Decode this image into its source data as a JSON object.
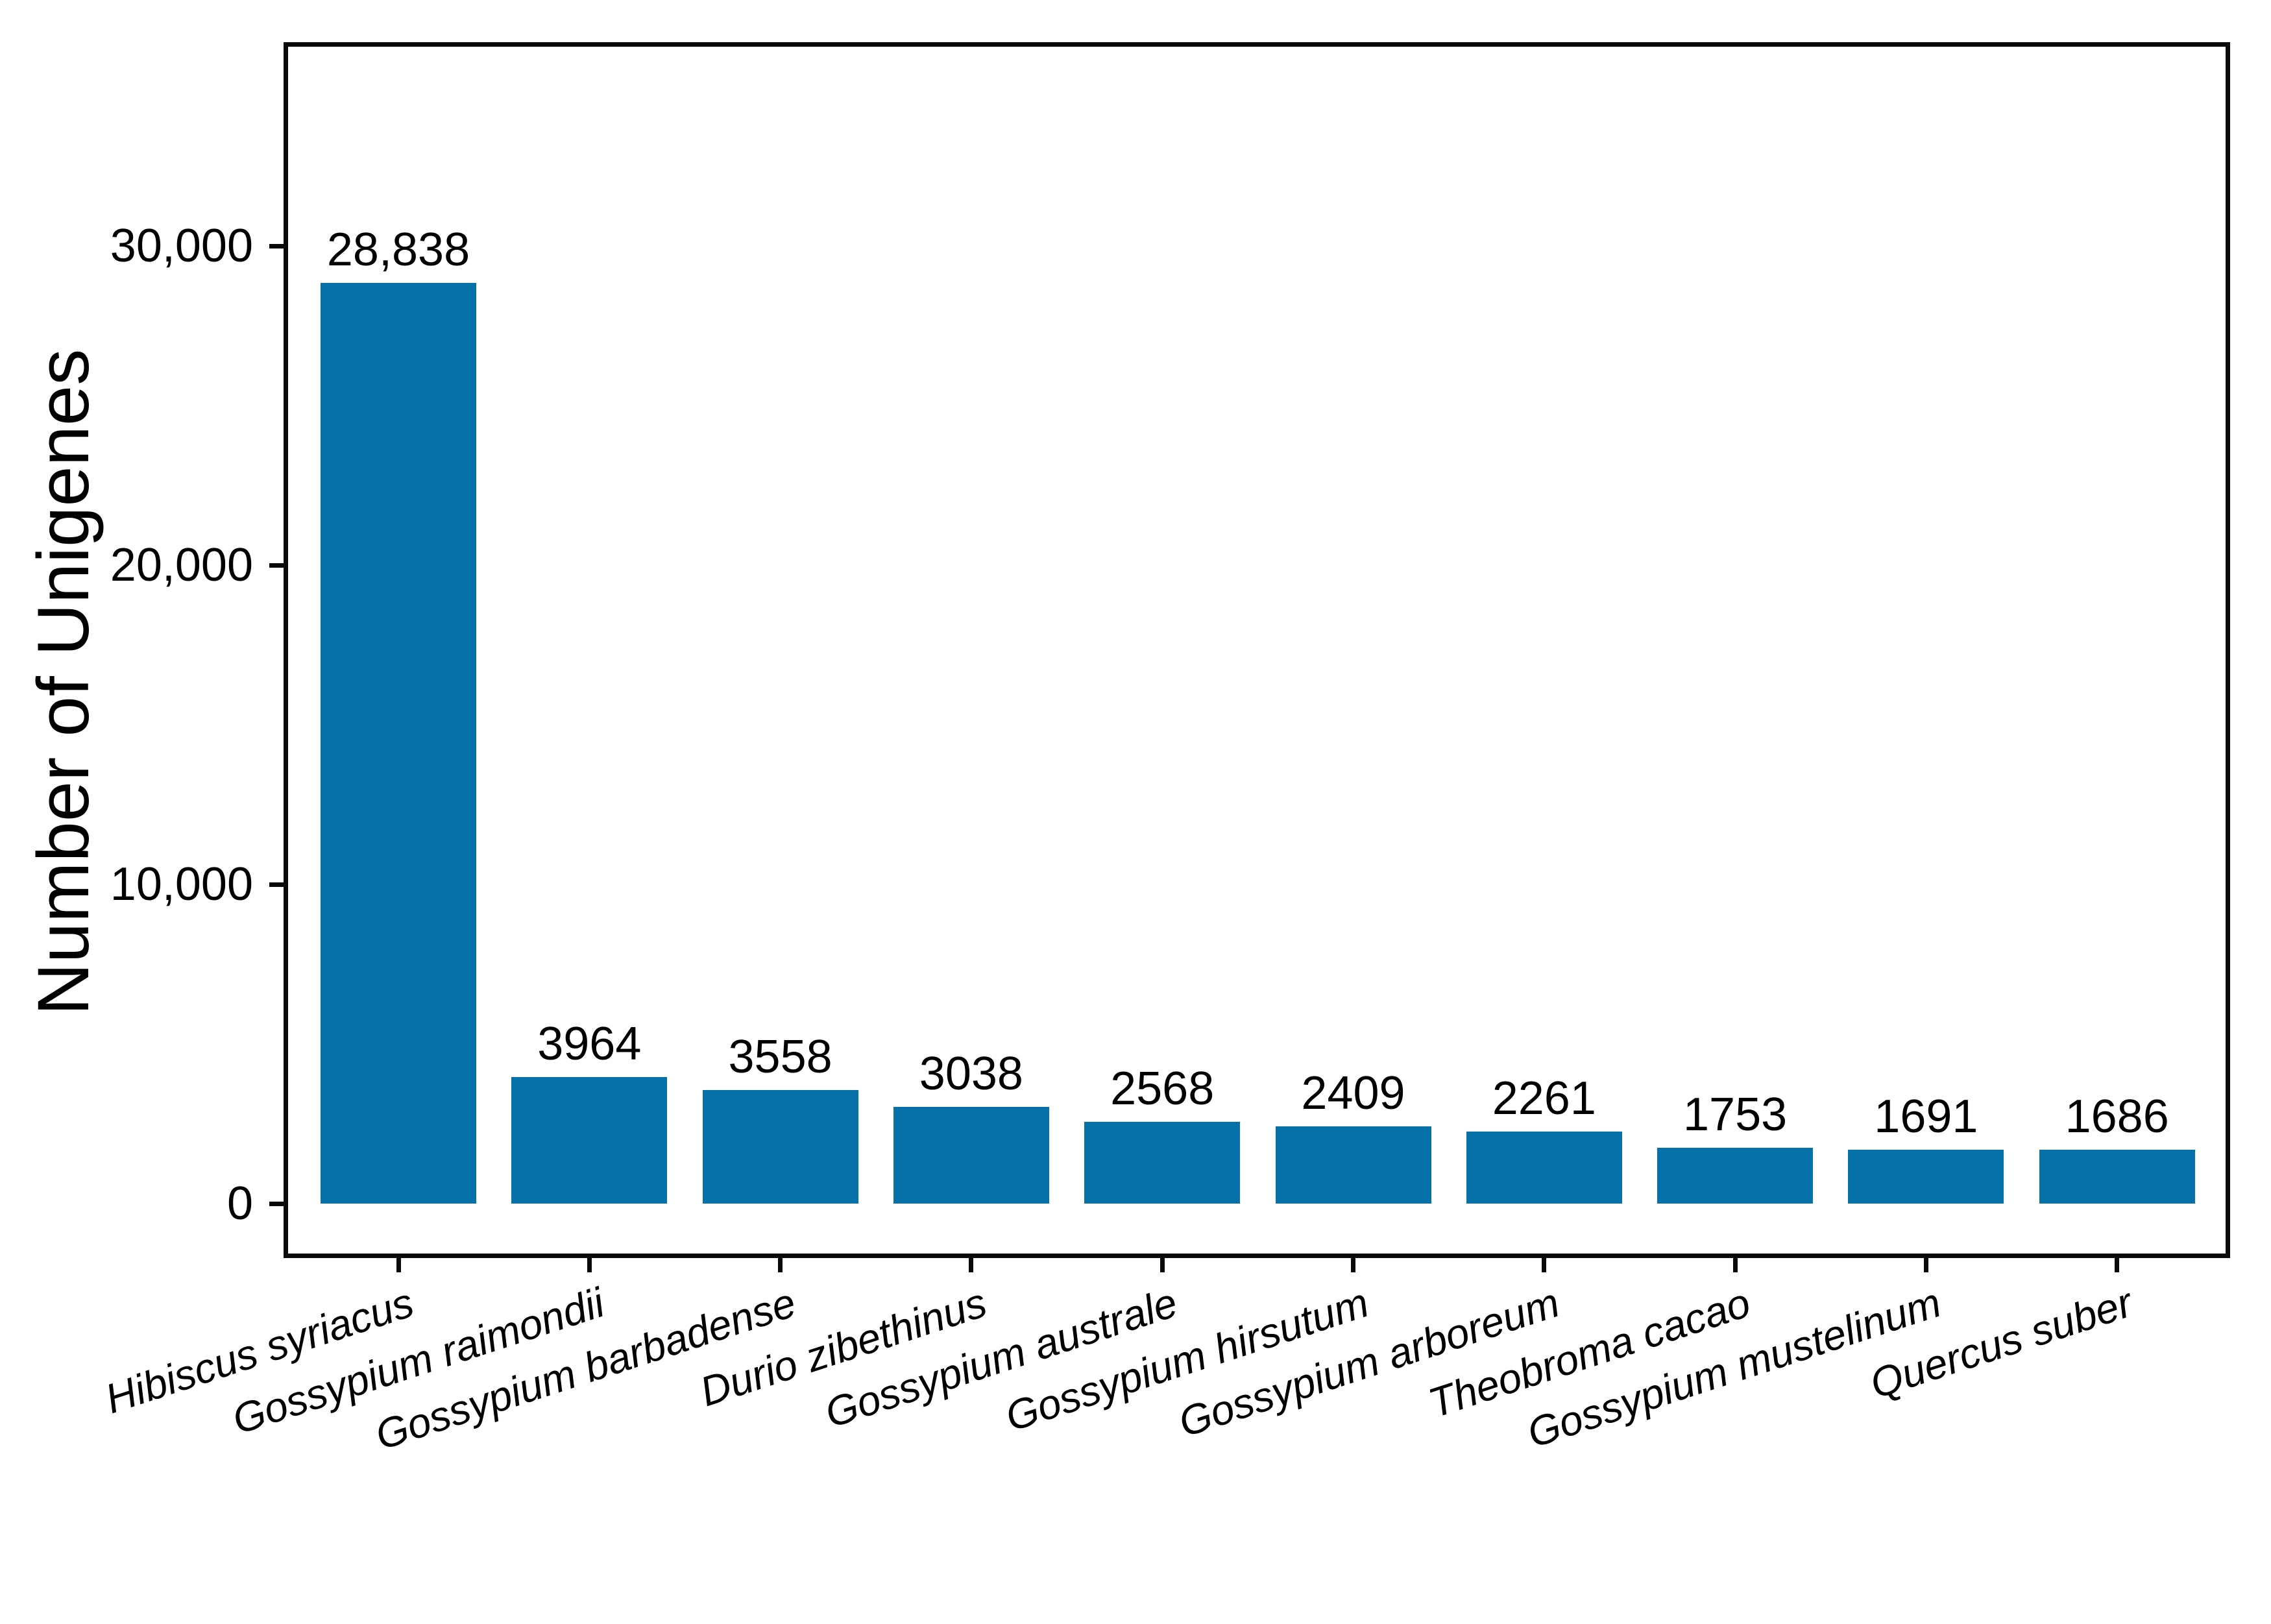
{
  "figure": {
    "background": "#ffffff"
  },
  "chart_data": {
    "type": "bar",
    "title": "",
    "xlabel": "",
    "ylabel": "Number of Unigenes",
    "categories": [
      "Hibiscus syriacus",
      "Gossypium raimondii",
      "Gossypium barbadense",
      "Durio zibethinus",
      "Gossypium australe",
      "Gossypium hirsutum",
      "Gossypium arboreum",
      "Theobroma cacao",
      "Gossypium mustelinum",
      "Quercus suber"
    ],
    "values": [
      28838,
      3964,
      3558,
      3038,
      2568,
      2409,
      2261,
      1753,
      1691,
      1686
    ],
    "bar_value_labels": [
      "28,838",
      "3964",
      "3558",
      "3038",
      "2568",
      "2409",
      "2261",
      "1753",
      "1691",
      "1686"
    ],
    "y_ticks": [
      {
        "value": 0,
        "label": "0"
      },
      {
        "value": 10000,
        "label": "10,000"
      },
      {
        "value": 20000,
        "label": "20,000"
      },
      {
        "value": 30000,
        "label": "30,000"
      }
    ],
    "ylim": [
      -1700,
      36200
    ],
    "grid": false,
    "legend": null,
    "bar_color": "#0571a8",
    "axis_color": "#0a0a0a",
    "text_color": "#000000",
    "x_tick_label_style": "italic",
    "x_tick_label_rotation_deg": -18
  }
}
